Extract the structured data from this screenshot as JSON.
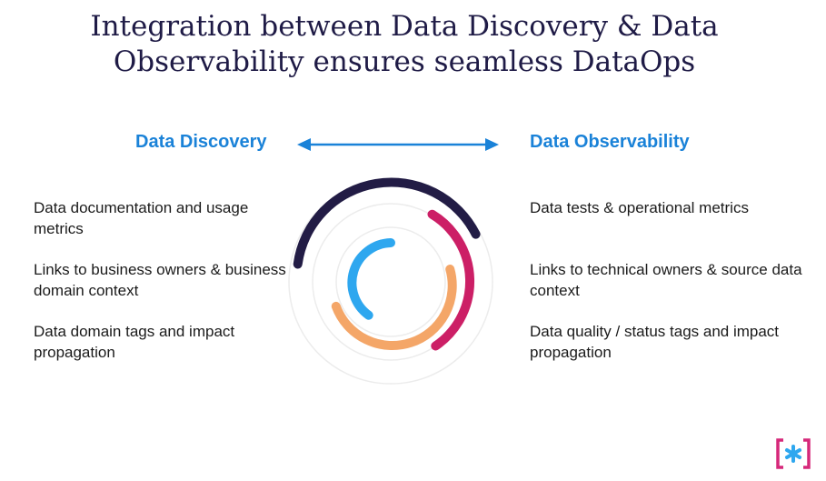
{
  "title": {
    "line1": "Integration between Data Discovery & Data",
    "line2": "Observability ensures seamless DataOps"
  },
  "left": {
    "heading": "Data Discovery",
    "items": [
      {
        "text": "Data documentation and usage metrics"
      },
      {
        "text": "Links to business owners & business domain context"
      },
      {
        "text": "Data domain tags and impact propagation"
      }
    ]
  },
  "right": {
    "heading": "Data Observability",
    "items": [
      {
        "text": "Data tests & operational metrics"
      },
      {
        "text": "Links to technical owners & source data context"
      },
      {
        "text": "Data quality / status tags and impact propagation"
      }
    ]
  },
  "colors": {
    "title": "#1f1b46",
    "heading": "#1a82d8",
    "arc_navy": "#221c45",
    "arc_magenta": "#cc1f66",
    "arc_orange": "#f4a668",
    "arc_blue": "#2ea7ef",
    "ring_gray": "#ececec",
    "logo_magenta": "#d6287a",
    "logo_blue": "#2ea7ef"
  },
  "icons": {
    "arrow": "double-headed-arrow",
    "logo": "bracket-asterisk-logo"
  }
}
